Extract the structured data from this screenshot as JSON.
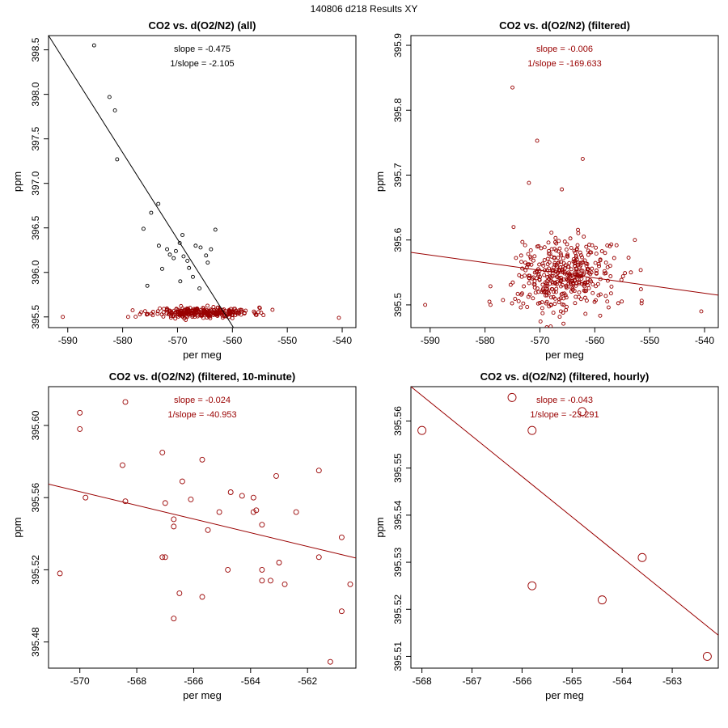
{
  "figure_title": "140806   d218   Results XY",
  "colors": {
    "black": "#000000",
    "red": "#990000"
  },
  "chart_data": [
    {
      "type": "scatter",
      "title": "CO2 vs. d(O2/N2) (all)",
      "xlabel": "per meg",
      "ylabel": "ppm",
      "xlim": [
        -593.5,
        -537.5
      ],
      "ylim": [
        395.38,
        398.66
      ],
      "xticks": [
        -590,
        -580,
        -570,
        -560,
        -550,
        -540
      ],
      "yticks": [
        395.5,
        396.0,
        396.5,
        397.0,
        397.5,
        398.0,
        398.5
      ],
      "ytick_labels": [
        "395.5",
        "396.0",
        "396.5",
        "397.0",
        "397.5",
        "398.0",
        "398.5"
      ],
      "annotations": [
        "slope = -0.475",
        "1/slope = -2.105"
      ],
      "annotation_color": "#000000",
      "fit_line": {
        "x": [
          -593.5,
          -559.8
        ],
        "y": [
          398.66,
          395.38
        ],
        "color": "#000000"
      },
      "series": [
        {
          "name": "all-black",
          "color": "#000000",
          "points": [
            [
              -585.2,
              398.55
            ],
            [
              -582.4,
              397.97
            ],
            [
              -581.4,
              397.82
            ],
            [
              -581.0,
              397.27
            ],
            [
              -574.8,
              396.67
            ],
            [
              -573.5,
              396.77
            ],
            [
              -576.2,
              396.49
            ],
            [
              -573.4,
              396.3
            ],
            [
              -571.9,
              396.26
            ],
            [
              -571.4,
              396.2
            ],
            [
              -570.3,
              396.24
            ],
            [
              -569.6,
              396.33
            ],
            [
              -569.1,
              396.42
            ],
            [
              -568.9,
              396.18
            ],
            [
              -567.9,
              396.05
            ],
            [
              -568.2,
              396.13
            ],
            [
              -570.7,
              396.16
            ],
            [
              -566.7,
              396.3
            ],
            [
              -565.8,
              396.28
            ],
            [
              -564.5,
              396.11
            ],
            [
              -563.9,
              396.26
            ],
            [
              -564.8,
              396.19
            ],
            [
              -563.1,
              396.48
            ],
            [
              -572.8,
              396.04
            ],
            [
              -569.5,
              395.9
            ],
            [
              -566.0,
              395.82
            ],
            [
              -567.2,
              395.95
            ],
            [
              -575.5,
              395.85
            ]
          ]
        },
        {
          "name": "all-red",
          "color": "#990000",
          "cluster": {
            "x_center": -565.5,
            "x_sd": 4.5,
            "y_center": 395.55,
            "y_sd": 0.028,
            "n": 300,
            "seed": 11,
            "extra": [
              [
                -590.9,
                395.5
              ],
              [
                -540.6,
                395.49
              ],
              [
                -579.0,
                395.5
              ],
              [
                -552.7,
                395.58
              ]
            ]
          }
        }
      ]
    },
    {
      "type": "scatter",
      "title": "CO2 vs. d(O2/N2) (filtered)",
      "xlabel": "per meg",
      "ylabel": "ppm",
      "xlim": [
        -593.5,
        -537.5
      ],
      "ylim": [
        395.465,
        395.915
      ],
      "xticks": [
        -590,
        -580,
        -570,
        -560,
        -550,
        -540
      ],
      "yticks": [
        395.5,
        395.6,
        395.7,
        395.8,
        395.9
      ],
      "ytick_labels": [
        "395.5",
        "395.6",
        "395.7",
        "395.8",
        "395.9"
      ],
      "annotations": [
        "slope = -0.006",
        "1/slope = -169.633"
      ],
      "annotation_color": "#990000",
      "fit_line": {
        "x": [
          -593.5,
          -537.5
        ],
        "y": [
          395.581,
          395.515
        ],
        "color": "#990000"
      },
      "series": [
        {
          "name": "filtered",
          "color": "#990000",
          "points": [
            [
              -575.0,
              395.835
            ],
            [
              -570.5,
              395.753
            ],
            [
              -562.2,
              395.725
            ],
            [
              -572.0,
              395.688
            ],
            [
              -566.0,
              395.678
            ],
            [
              -590.9,
              395.5
            ],
            [
              -540.6,
              395.49
            ],
            [
              -579.2,
              395.505
            ],
            [
              -579.0,
              395.5
            ],
            [
              -552.7,
              395.6
            ],
            [
              -574.8,
              395.62
            ]
          ],
          "cluster": {
            "x_center": -565.5,
            "x_sd": 4.5,
            "y_center": 395.545,
            "y_sd": 0.028,
            "n": 400,
            "seed": 7
          }
        }
      ]
    },
    {
      "type": "scatter",
      "title": "CO2 vs. d(O2/N2) (filtered, 10-minute)",
      "xlabel": "per meg",
      "ylabel": "ppm",
      "xlim": [
        -571.1,
        -560.3
      ],
      "ylim": [
        395.4655,
        395.6215
      ],
      "xticks": [
        -570,
        -568,
        -566,
        -564,
        -562
      ],
      "yticks": [
        395.48,
        395.52,
        395.56,
        395.6
      ],
      "ytick_labels": [
        "395.48",
        "395.52",
        "395.56",
        "395.60"
      ],
      "annotations": [
        "slope = -0.024",
        "1/slope = -40.953"
      ],
      "annotation_color": "#990000",
      "fit_line": {
        "x": [
          -571.1,
          -560.3
        ],
        "y": [
          395.5675,
          395.5265
        ],
        "color": "#990000"
      },
      "series": [
        {
          "name": "10-minute",
          "color": "#990000",
          "points": [
            [
              -570.7,
              395.518
            ],
            [
              -570.0,
              395.607
            ],
            [
              -570.0,
              395.598
            ],
            [
              -569.8,
              395.56
            ],
            [
              -568.5,
              395.578
            ],
            [
              -568.4,
              395.613
            ],
            [
              -568.4,
              395.558
            ],
            [
              -567.1,
              395.585
            ],
            [
              -567.1,
              395.527
            ],
            [
              -567.0,
              395.527
            ],
            [
              -567.0,
              395.557
            ],
            [
              -566.7,
              395.548
            ],
            [
              -566.7,
              395.544
            ],
            [
              -566.7,
              395.493
            ],
            [
              -566.5,
              395.507
            ],
            [
              -566.4,
              395.569
            ],
            [
              -566.1,
              395.559
            ],
            [
              -565.7,
              395.581
            ],
            [
              -565.7,
              395.505
            ],
            [
              -565.5,
              395.542
            ],
            [
              -565.1,
              395.552
            ],
            [
              -564.8,
              395.52
            ],
            [
              -564.7,
              395.563
            ],
            [
              -564.3,
              395.561
            ],
            [
              -563.9,
              395.56
            ],
            [
              -563.9,
              395.552
            ],
            [
              -563.8,
              395.553
            ],
            [
              -563.6,
              395.545
            ],
            [
              -563.6,
              395.52
            ],
            [
              -563.6,
              395.514
            ],
            [
              -563.3,
              395.514
            ],
            [
              -563.1,
              395.572
            ],
            [
              -563.0,
              395.524
            ],
            [
              -562.8,
              395.512
            ],
            [
              -562.4,
              395.552
            ],
            [
              -561.6,
              395.575
            ],
            [
              -561.6,
              395.527
            ],
            [
              -561.2,
              395.469
            ],
            [
              -560.8,
              395.538
            ],
            [
              -560.8,
              395.497
            ],
            [
              -560.5,
              395.512
            ]
          ]
        }
      ]
    },
    {
      "type": "scatter",
      "title": "CO2 vs. d(O2/N2) (filtered, hourly)",
      "xlabel": "per meg",
      "ylabel": "ppm",
      "xlim": [
        -568.22,
        -562.08
      ],
      "ylim": [
        395.5075,
        395.5673
      ],
      "xticks": [
        -568,
        -567,
        -566,
        -565,
        -564,
        -563
      ],
      "yticks": [
        395.51,
        395.52,
        395.53,
        395.54,
        395.55,
        395.56
      ],
      "ytick_labels": [
        "395.51",
        "395.52",
        "395.53",
        "395.54",
        "395.55",
        "395.56"
      ],
      "annotations": [
        "slope = -0.043",
        "1/slope = -23.291"
      ],
      "annotation_color": "#990000",
      "fit_line": {
        "x": [
          -568.22,
          -562.08
        ],
        "y": [
          395.5673,
          395.5145
        ],
        "color": "#990000"
      },
      "series": [
        {
          "name": "hourly",
          "color": "#990000",
          "points": [
            [
              -568.0,
              395.558
            ],
            [
              -566.2,
              395.565
            ],
            [
              -565.8,
              395.558
            ],
            [
              -565.8,
              395.525
            ],
            [
              -564.8,
              395.562
            ],
            [
              -564.4,
              395.522
            ],
            [
              -563.6,
              395.531
            ],
            [
              -562.3,
              395.51
            ]
          ]
        }
      ]
    }
  ]
}
